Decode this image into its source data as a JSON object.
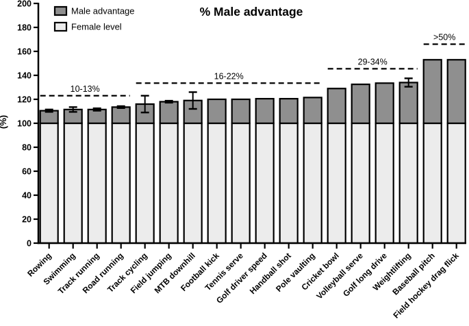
{
  "title": "% Male advantage",
  "y_axis": {
    "label": "(%)",
    "min": 0,
    "max": 200,
    "tick_step": 20
  },
  "legend": {
    "items": [
      {
        "label": "Male advantage",
        "color": "#8f8f8f"
      },
      {
        "label": "Female level",
        "color": "#ececec"
      }
    ]
  },
  "chart_data": {
    "type": "bar",
    "stacked": true,
    "title": "% Male advantage",
    "ylabel": "(%)",
    "ylim": [
      0,
      200
    ],
    "ytick_step": 20,
    "grid": false,
    "legend_position": "top-left",
    "bar_outline_color": "#000000",
    "categories": [
      "Rowing",
      "Swimming",
      "Track running",
      "Road running",
      "Track cycling",
      "Field jumping",
      "MTB downhill",
      "Football kick",
      "Tennis serve",
      "Golf driver speed",
      "Handball shot",
      "Pole vaulting",
      "Cricket bowl",
      "Volleyball serve",
      "Golf long drive",
      "Weightlifting",
      "Baseball pitch",
      "Field hockey drag flick"
    ],
    "series": [
      {
        "name": "Female level",
        "color": "#ececec",
        "values": [
          100,
          100,
          100,
          100,
          100,
          100,
          100,
          100,
          100,
          100,
          100,
          100,
          100,
          100,
          100,
          100,
          100,
          100
        ]
      },
      {
        "name": "Male advantage",
        "color": "#8f8f8f",
        "values": [
          10.5,
          11.5,
          11.5,
          13.5,
          16,
          18,
          19,
          20,
          20,
          20.5,
          20.5,
          21.5,
          29,
          32.5,
          33.5,
          34,
          53,
          53
        ]
      }
    ],
    "totals": [
      110.5,
      111.5,
      111.5,
      113.5,
      116,
      118,
      119,
      120,
      120,
      120.5,
      120.5,
      121.5,
      129,
      132.5,
      133.5,
      134,
      153,
      153
    ],
    "errors": [
      1,
      2,
      1,
      0.8,
      7,
      0.8,
      7,
      null,
      null,
      null,
      null,
      null,
      null,
      null,
      null,
      3.5,
      null,
      null
    ],
    "annotations": [
      {
        "label": "10-13%",
        "level": 123,
        "from": 0,
        "to": 3
      },
      {
        "label": "16-22%",
        "level": 133.5,
        "from": 4,
        "to": 11
      },
      {
        "label": "29-34%",
        "level": 145.5,
        "from": 12,
        "to": 15
      },
      {
        "label": ">50%",
        "level": 166,
        "from": 16,
        "to": 17
      }
    ]
  }
}
